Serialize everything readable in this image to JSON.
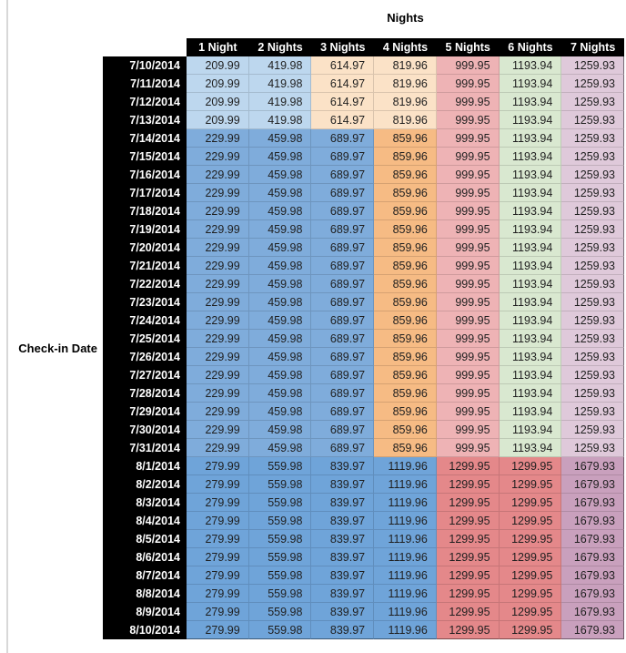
{
  "title": "Nights",
  "row_axis_label": "Check-in Date",
  "columns": [
    "1 Night",
    "2 Nights",
    "3 Nights",
    "4 Nights",
    "5 Nights",
    "6 Nights",
    "7 Nights"
  ],
  "colors": {
    "header_bg": "#000000",
    "header_text": "#ffffff",
    "cell_text": "#1f1f1f",
    "light_blue": "#BDD7EE",
    "light_orange": "#FBE2C7",
    "mid_blue": "#7FACDB",
    "orange": "#F6BB84",
    "pink": "#EEB3B5",
    "green": "#D9E8D0",
    "lilac": "#DFC9DA",
    "dark_blue": "#6FA4D9",
    "red": "#E4888A",
    "mauve": "#C9A0BD"
  },
  "palettes": {
    "early": [
      "light_blue",
      "light_blue",
      "light_orange",
      "light_orange",
      "pink",
      "green",
      "lilac"
    ],
    "mid": [
      "mid_blue",
      "mid_blue",
      "mid_blue",
      "orange",
      "pink",
      "green",
      "lilac"
    ],
    "late": [
      "dark_blue",
      "dark_blue",
      "dark_blue",
      "dark_blue",
      "red",
      "red",
      "mauve"
    ]
  },
  "chart_data": {
    "type": "table",
    "title": "Nights",
    "row_header": "Check-in Date",
    "columns": [
      "1 Night",
      "2 Nights",
      "3 Nights",
      "4 Nights",
      "5 Nights",
      "6 Nights",
      "7 Nights"
    ],
    "rows": [
      {
        "date": "7/10/2014",
        "palette": "early",
        "values": [
          "209.99",
          "419.98",
          "614.97",
          "819.96",
          "999.95",
          "1193.94",
          "1259.93"
        ]
      },
      {
        "date": "7/11/2014",
        "palette": "early",
        "values": [
          "209.99",
          "419.98",
          "614.97",
          "819.96",
          "999.95",
          "1193.94",
          "1259.93"
        ]
      },
      {
        "date": "7/12/2014",
        "palette": "early",
        "values": [
          "209.99",
          "419.98",
          "614.97",
          "819.96",
          "999.95",
          "1193.94",
          "1259.93"
        ]
      },
      {
        "date": "7/13/2014",
        "palette": "early",
        "values": [
          "209.99",
          "419.98",
          "614.97",
          "819.96",
          "999.95",
          "1193.94",
          "1259.93"
        ]
      },
      {
        "date": "7/14/2014",
        "palette": "mid",
        "values": [
          "229.99",
          "459.98",
          "689.97",
          "859.96",
          "999.95",
          "1193.94",
          "1259.93"
        ]
      },
      {
        "date": "7/15/2014",
        "palette": "mid",
        "values": [
          "229.99",
          "459.98",
          "689.97",
          "859.96",
          "999.95",
          "1193.94",
          "1259.93"
        ]
      },
      {
        "date": "7/16/2014",
        "palette": "mid",
        "values": [
          "229.99",
          "459.98",
          "689.97",
          "859.96",
          "999.95",
          "1193.94",
          "1259.93"
        ]
      },
      {
        "date": "7/17/2014",
        "palette": "mid",
        "values": [
          "229.99",
          "459.98",
          "689.97",
          "859.96",
          "999.95",
          "1193.94",
          "1259.93"
        ]
      },
      {
        "date": "7/18/2014",
        "palette": "mid",
        "values": [
          "229.99",
          "459.98",
          "689.97",
          "859.96",
          "999.95",
          "1193.94",
          "1259.93"
        ]
      },
      {
        "date": "7/19/2014",
        "palette": "mid",
        "values": [
          "229.99",
          "459.98",
          "689.97",
          "859.96",
          "999.95",
          "1193.94",
          "1259.93"
        ]
      },
      {
        "date": "7/20/2014",
        "palette": "mid",
        "values": [
          "229.99",
          "459.98",
          "689.97",
          "859.96",
          "999.95",
          "1193.94",
          "1259.93"
        ]
      },
      {
        "date": "7/21/2014",
        "palette": "mid",
        "values": [
          "229.99",
          "459.98",
          "689.97",
          "859.96",
          "999.95",
          "1193.94",
          "1259.93"
        ]
      },
      {
        "date": "7/22/2014",
        "palette": "mid",
        "values": [
          "229.99",
          "459.98",
          "689.97",
          "859.96",
          "999.95",
          "1193.94",
          "1259.93"
        ]
      },
      {
        "date": "7/23/2014",
        "palette": "mid",
        "values": [
          "229.99",
          "459.98",
          "689.97",
          "859.96",
          "999.95",
          "1193.94",
          "1259.93"
        ]
      },
      {
        "date": "7/24/2014",
        "palette": "mid",
        "values": [
          "229.99",
          "459.98",
          "689.97",
          "859.96",
          "999.95",
          "1193.94",
          "1259.93"
        ]
      },
      {
        "date": "7/25/2014",
        "palette": "mid",
        "values": [
          "229.99",
          "459.98",
          "689.97",
          "859.96",
          "999.95",
          "1193.94",
          "1259.93"
        ]
      },
      {
        "date": "7/26/2014",
        "palette": "mid",
        "values": [
          "229.99",
          "459.98",
          "689.97",
          "859.96",
          "999.95",
          "1193.94",
          "1259.93"
        ]
      },
      {
        "date": "7/27/2014",
        "palette": "mid",
        "values": [
          "229.99",
          "459.98",
          "689.97",
          "859.96",
          "999.95",
          "1193.94",
          "1259.93"
        ]
      },
      {
        "date": "7/28/2014",
        "palette": "mid",
        "values": [
          "229.99",
          "459.98",
          "689.97",
          "859.96",
          "999.95",
          "1193.94",
          "1259.93"
        ]
      },
      {
        "date": "7/29/2014",
        "palette": "mid",
        "values": [
          "229.99",
          "459.98",
          "689.97",
          "859.96",
          "999.95",
          "1193.94",
          "1259.93"
        ]
      },
      {
        "date": "7/30/2014",
        "palette": "mid",
        "values": [
          "229.99",
          "459.98",
          "689.97",
          "859.96",
          "999.95",
          "1193.94",
          "1259.93"
        ]
      },
      {
        "date": "7/31/2014",
        "palette": "mid",
        "values": [
          "229.99",
          "459.98",
          "689.97",
          "859.96",
          "999.95",
          "1193.94",
          "1259.93"
        ]
      },
      {
        "date": "8/1/2014",
        "palette": "late",
        "values": [
          "279.99",
          "559.98",
          "839.97",
          "1119.96",
          "1299.95",
          "1299.95",
          "1679.93"
        ]
      },
      {
        "date": "8/2/2014",
        "palette": "late",
        "values": [
          "279.99",
          "559.98",
          "839.97",
          "1119.96",
          "1299.95",
          "1299.95",
          "1679.93"
        ]
      },
      {
        "date": "8/3/2014",
        "palette": "late",
        "values": [
          "279.99",
          "559.98",
          "839.97",
          "1119.96",
          "1299.95",
          "1299.95",
          "1679.93"
        ]
      },
      {
        "date": "8/4/2014",
        "palette": "late",
        "values": [
          "279.99",
          "559.98",
          "839.97",
          "1119.96",
          "1299.95",
          "1299.95",
          "1679.93"
        ]
      },
      {
        "date": "8/5/2014",
        "palette": "late",
        "values": [
          "279.99",
          "559.98",
          "839.97",
          "1119.96",
          "1299.95",
          "1299.95",
          "1679.93"
        ]
      },
      {
        "date": "8/6/2014",
        "palette": "late",
        "values": [
          "279.99",
          "559.98",
          "839.97",
          "1119.96",
          "1299.95",
          "1299.95",
          "1679.93"
        ]
      },
      {
        "date": "8/7/2014",
        "palette": "late",
        "values": [
          "279.99",
          "559.98",
          "839.97",
          "1119.96",
          "1299.95",
          "1299.95",
          "1679.93"
        ]
      },
      {
        "date": "8/8/2014",
        "palette": "late",
        "values": [
          "279.99",
          "559.98",
          "839.97",
          "1119.96",
          "1299.95",
          "1299.95",
          "1679.93"
        ]
      },
      {
        "date": "8/9/2014",
        "palette": "late",
        "values": [
          "279.99",
          "559.98",
          "839.97",
          "1119.96",
          "1299.95",
          "1299.95",
          "1679.93"
        ]
      },
      {
        "date": "8/10/2014",
        "palette": "late",
        "values": [
          "279.99",
          "559.98",
          "839.97",
          "1119.96",
          "1299.95",
          "1299.95",
          "1679.93"
        ]
      }
    ]
  }
}
